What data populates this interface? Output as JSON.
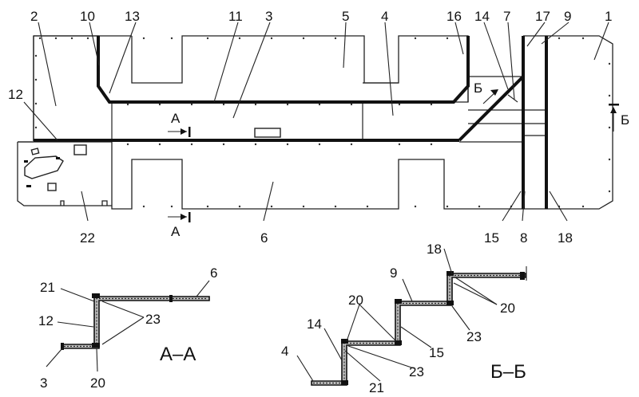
{
  "callouts": {
    "n1": "1",
    "n2": "2",
    "n3": "3",
    "n4": "4",
    "n5": "5",
    "n6": "6",
    "n7": "7",
    "n8": "8",
    "n9": "9",
    "n10": "10",
    "n11": "11",
    "n12": "12",
    "n13": "13",
    "n14": "14",
    "n15": "15",
    "n16": "16",
    "n17": "17",
    "n18": "18",
    "n22": "22"
  },
  "section_marks": {
    "a_top": "А",
    "a_bottom": "А",
    "b_left": "Б",
    "b_right": "Б"
  },
  "section_aa": {
    "title": "А–А",
    "labels": {
      "l21": "21",
      "l12": "12",
      "l3": "3",
      "l20": "20",
      "l23": "23",
      "l6": "6"
    }
  },
  "section_bb": {
    "title": "Б–Б",
    "labels": {
      "l18": "18",
      "l9": "9",
      "l20a": "20",
      "l20b": "20",
      "l14": "14",
      "l4": "4",
      "l23a": "23",
      "l23b": "23",
      "l15": "15",
      "l21": "21"
    }
  }
}
